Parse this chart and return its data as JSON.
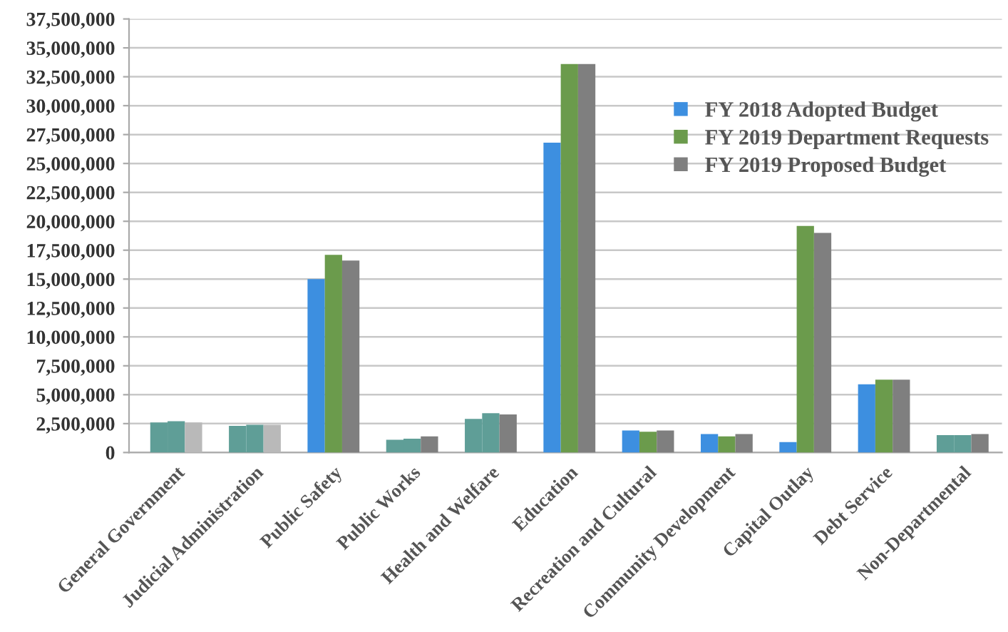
{
  "chart_data": {
    "type": "bar",
    "categories": [
      "General Government",
      "Judicial Administration",
      "Public Safety",
      "Public Works",
      "Health and Welfare",
      "Education",
      "Recreation and Cultural",
      "Community Development",
      "Capital Outlay",
      "Debt Service",
      "Non-Departmental"
    ],
    "series": [
      {
        "name": "FY 2018 Adopted Budget",
        "color": "#3d8fe0",
        "colors": [
          "#5f9e97",
          "#5f9e97",
          "#3d8fe0",
          "#5f9e97",
          "#5f9e97",
          "#3d8fe0",
          "#3d8fe0",
          "#3d8fe0",
          "#3d8fe0",
          "#3d8fe0",
          "#5f9e97"
        ],
        "values": [
          2600000,
          2300000,
          15000000,
          1100000,
          2900000,
          26800000,
          1900000,
          1600000,
          900000,
          5900000,
          1500000
        ]
      },
      {
        "name": "FY 2019 Department Requests",
        "color": "#6b9b4c",
        "colors": [
          "#5f9e97",
          "#5f9e97",
          "#6b9b4c",
          "#5f9e97",
          "#5f9e97",
          "#6b9b4c",
          "#6b9b4c",
          "#6b9b4c",
          "#6b9b4c",
          "#6b9b4c",
          "#5f9e97"
        ],
        "values": [
          2700000,
          2400000,
          17100000,
          1200000,
          3400000,
          33600000,
          1800000,
          1400000,
          19600000,
          6300000,
          1500000
        ]
      },
      {
        "name": "FY 2019 Proposed Budget",
        "color": "#7f7f7f",
        "colors": [
          "#b9b9b9",
          "#b9b9b9",
          "#7f7f7f",
          "#7f7f7f",
          "#7f7f7f",
          "#7f7f7f",
          "#7f7f7f",
          "#7f7f7f",
          "#7f7f7f",
          "#7f7f7f",
          "#7f7f7f"
        ],
        "values": [
          2600000,
          2400000,
          16600000,
          1400000,
          3300000,
          33600000,
          1900000,
          1600000,
          19000000,
          6300000,
          1600000
        ]
      }
    ],
    "ylim": [
      0,
      37500000
    ],
    "yticks": [
      0,
      {
        "value": 2500000,
        "label": "2,500,000"
      },
      {
        "value": 5000000,
        "label": "5,000,000"
      },
      {
        "value": 7500000,
        "label": "7,500,000"
      },
      {
        "value": 10000000,
        "label": "10,000,000"
      },
      {
        "value": 12500000,
        "label": "12,500,000"
      },
      {
        "value": 15000000,
        "label": "15,000,000"
      },
      {
        "value": 17500000,
        "label": "17,500,000"
      },
      {
        "value": 20000000,
        "label": "20,000,000"
      },
      {
        "value": 22500000,
        "label": "22,500,000"
      },
      {
        "value": 25000000,
        "label": "25,000,000"
      },
      {
        "value": 27500000,
        "label": "27,500,000"
      },
      {
        "value": 30000000,
        "label": "30,000,000"
      },
      {
        "value": 32500000,
        "label": "32,500,000"
      },
      {
        "value": 35000000,
        "label": "35,000,000"
      },
      {
        "value": 37500000,
        "label": "37,500,000"
      }
    ],
    "grid": "y",
    "legend": "top right"
  }
}
